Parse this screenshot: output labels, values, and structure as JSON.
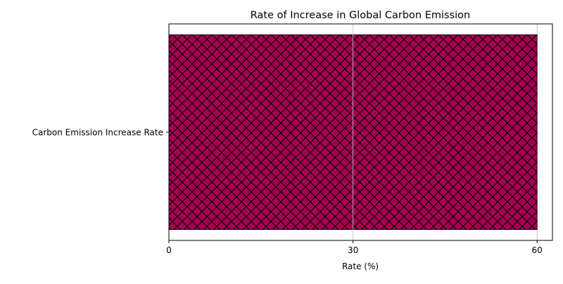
{
  "chart_data": {
    "type": "bar",
    "orientation": "horizontal",
    "title": "Rate of Increase in Global Carbon Emission",
    "xlabel": "Rate (%)",
    "ylabel": "",
    "categories": [
      "Carbon Emission Increase Rate"
    ],
    "values": [
      60
    ],
    "xlim": [
      0,
      62.5
    ],
    "xticks": [
      0,
      30,
      60
    ],
    "grid": "vertical lines, x-axis",
    "bar_color": "#a50050",
    "hatch": "crosshatch",
    "hatch_color": "#000000"
  }
}
